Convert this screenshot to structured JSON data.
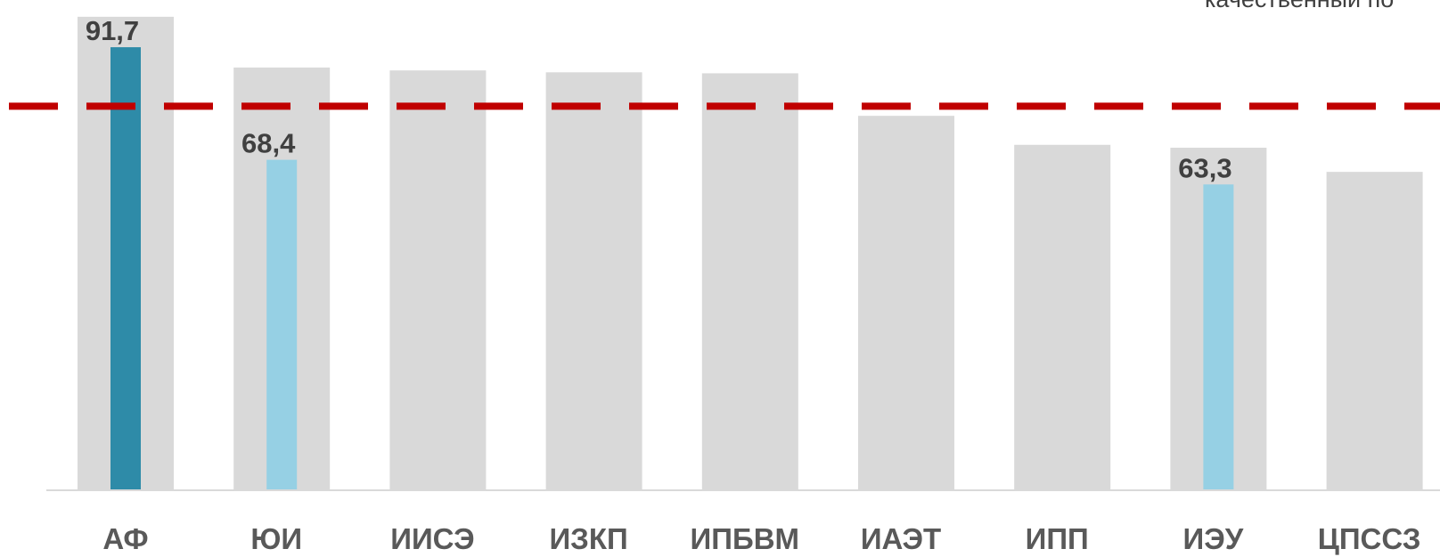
{
  "chart_data": {
    "type": "bar",
    "categories": [
      "АФ",
      "ЮИ",
      "ИИСЭ",
      "ИЗКП",
      "ИПБВМ",
      "ИАЭТ",
      "ИПП",
      "ИЭУ",
      "ЦПССЗ"
    ],
    "ylim": [
      0,
      100
    ],
    "grid": false,
    "series": [
      {
        "role": "background",
        "color": "#d9d9d9",
        "values": [
          98.0,
          87.5,
          86.9,
          86.5,
          86.3,
          77.5,
          71.5,
          70.9,
          65.9
        ]
      },
      {
        "role": "highlight",
        "values": [
          91.7,
          68.4,
          null,
          null,
          null,
          null,
          null,
          63.3,
          null
        ],
        "colors": [
          "#2e8ba8",
          "#96d0e4",
          null,
          null,
          null,
          null,
          null,
          "#96d0e4",
          null
        ],
        "labels": [
          "91,7",
          "68,4",
          null,
          null,
          null,
          null,
          null,
          "63,3",
          null
        ]
      }
    ],
    "reference_line": {
      "value": 79.5,
      "color": "#c00000",
      "style": "dashed"
    },
    "annotation": "качественный по"
  }
}
